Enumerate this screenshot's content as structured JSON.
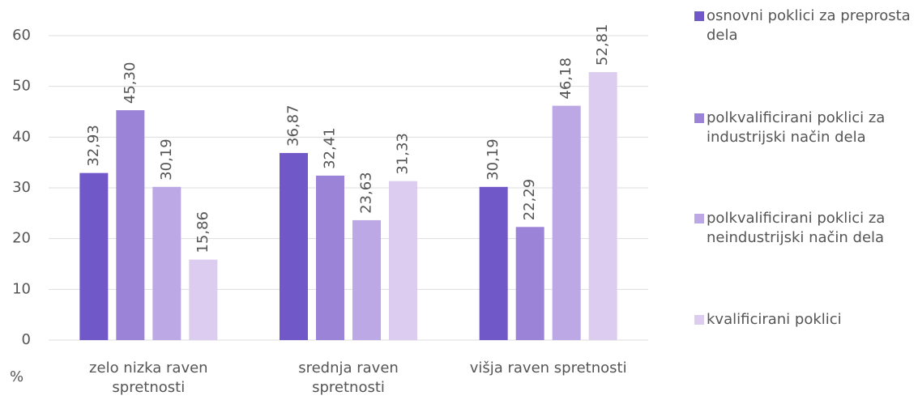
{
  "chart_data": {
    "type": "bar",
    "categories": [
      "zelo nizka raven spretnosti",
      "srednja raven spretnosti",
      "višja raven spretnosti"
    ],
    "series": [
      {
        "name": "osnovni poklici za preprosta dela",
        "color": "#7158c8",
        "values": [
          32.93,
          36.87,
          30.19
        ],
        "value_labels": [
          "32,93",
          "36,87",
          "30,19"
        ]
      },
      {
        "name": "polkvalificirani poklici za industrijski način dela",
        "color": "#9b84d8",
        "values": [
          45.3,
          32.41,
          22.29
        ],
        "value_labels": [
          "45,30",
          "32,41",
          "22,29"
        ]
      },
      {
        "name": "polkvalificirani poklici za neindustrijski način dela",
        "color": "#bca8e4",
        "values": [
          30.19,
          23.63,
          46.18
        ],
        "value_labels": [
          "30,19",
          "23,63",
          "46,18"
        ]
      },
      {
        "name": "kvalificirani poklici",
        "color": "#dcccf0",
        "values": [
          15.86,
          31.33,
          52.81
        ],
        "value_labels": [
          "15,86",
          "31,33",
          "52,81"
        ]
      }
    ],
    "y_axis_label": "%",
    "ylim": [
      0,
      60
    ],
    "yticks": [
      0,
      10,
      20,
      30,
      40,
      50,
      60
    ],
    "grid": true,
    "legend": "right"
  }
}
